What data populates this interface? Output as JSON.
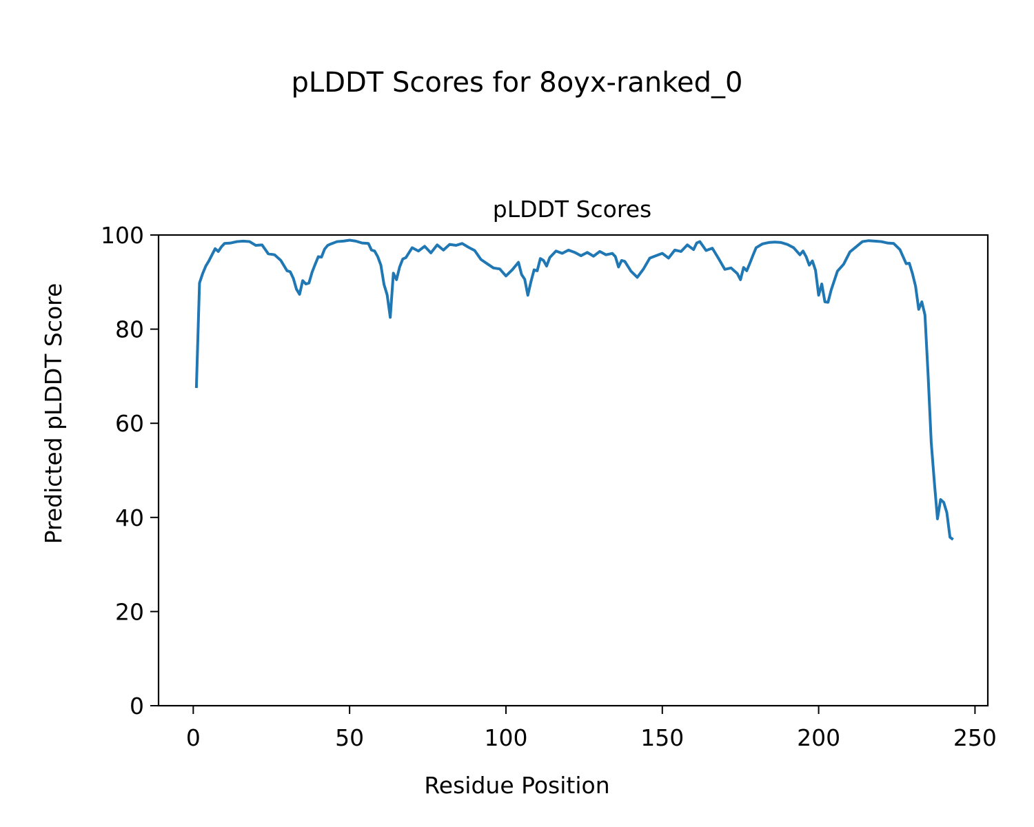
{
  "figure": {
    "suptitle": "pLDDT Scores for 8oyx-ranked_0"
  },
  "chart_data": {
    "type": "line",
    "title": "pLDDT Scores",
    "xlabel": "Residue Position",
    "ylabel": "Predicted pLDDT Score",
    "xlim": [
      -11.1,
      254.1
    ],
    "ylim": [
      0,
      100
    ],
    "xticks": [
      0,
      50,
      100,
      150,
      200,
      250
    ],
    "yticks": [
      0,
      20,
      40,
      60,
      80,
      100
    ],
    "xtick_labels": [
      "0",
      "50",
      "100",
      "150",
      "200",
      "250"
    ],
    "ytick_labels": [
      "0",
      "20",
      "40",
      "60",
      "80",
      "100"
    ],
    "grid": false,
    "line_color": "#1f77b4",
    "series": [
      {
        "x": [
          1,
          2,
          3,
          4,
          5,
          6,
          7,
          8,
          9,
          10,
          12,
          14,
          16,
          18,
          20,
          22,
          24,
          26,
          28,
          30,
          31,
          32,
          33,
          34,
          35,
          36,
          37,
          38,
          39,
          40,
          41,
          42,
          43,
          44,
          46,
          48,
          50,
          52,
          54,
          56,
          57,
          58,
          59,
          60,
          61,
          62,
          63,
          64,
          65,
          66,
          67,
          68,
          70,
          72,
          74,
          76,
          78,
          80,
          82,
          84,
          86,
          88,
          90,
          92,
          94,
          96,
          98,
          100,
          102,
          104,
          105,
          106,
          107,
          108,
          109,
          110,
          111,
          112,
          113,
          114,
          116,
          118,
          120,
          122,
          124,
          126,
          128,
          130,
          132,
          134,
          135,
          136,
          137,
          138,
          140,
          142,
          144,
          146,
          148,
          150,
          152,
          154,
          156,
          158,
          160,
          161,
          162,
          164,
          166,
          168,
          170,
          172,
          174,
          175,
          176,
          177,
          178,
          179,
          180,
          182,
          184,
          186,
          188,
          190,
          192,
          194,
          195,
          196,
          197,
          198,
          199,
          200,
          201,
          202,
          203,
          204,
          206,
          208,
          210,
          212,
          214,
          216,
          218,
          220,
          222,
          224,
          226,
          228,
          229,
          230,
          231,
          232,
          233,
          234,
          235,
          236,
          237,
          238,
          239,
          240,
          241,
          242,
          243
        ],
        "y": [
          67.5,
          89.8,
          91.8,
          93.4,
          94.5,
          95.8,
          97.1,
          96.5,
          97.5,
          98.2,
          98.3,
          98.6,
          98.7,
          98.6,
          97.8,
          97.9,
          96.0,
          95.8,
          94.6,
          92.4,
          92.2,
          90.8,
          88.5,
          87.4,
          90.3,
          89.6,
          89.8,
          92.1,
          93.8,
          95.4,
          95.3,
          97.0,
          97.8,
          98.1,
          98.6,
          98.7,
          98.9,
          98.7,
          98.3,
          98.2,
          96.8,
          96.6,
          95.4,
          93.6,
          89.5,
          87.3,
          82.5,
          91.9,
          90.5,
          93.2,
          94.9,
          95.2,
          97.3,
          96.6,
          97.6,
          96.2,
          97.9,
          96.8,
          98.0,
          97.8,
          98.2,
          97.4,
          96.7,
          94.8,
          93.9,
          93.0,
          92.8,
          91.3,
          92.6,
          94.2,
          91.6,
          90.6,
          87.2,
          90.1,
          92.6,
          92.4,
          95.0,
          94.6,
          93.4,
          95.2,
          96.6,
          96.1,
          96.8,
          96.3,
          95.6,
          96.3,
          95.5,
          96.5,
          95.8,
          96.1,
          95.4,
          93.2,
          94.6,
          94.4,
          92.3,
          91.0,
          92.8,
          95.1,
          95.6,
          96.1,
          95.1,
          96.8,
          96.5,
          97.9,
          96.9,
          98.3,
          98.6,
          96.7,
          97.2,
          95.0,
          92.7,
          93.0,
          91.8,
          90.5,
          93.1,
          92.4,
          94.0,
          95.7,
          97.3,
          98.1,
          98.4,
          98.5,
          98.4,
          98.0,
          97.3,
          95.8,
          96.6,
          95.4,
          93.6,
          94.5,
          92.5,
          87.2,
          89.6,
          85.8,
          85.7,
          88.3,
          92.3,
          93.8,
          96.4,
          97.5,
          98.6,
          98.8,
          98.7,
          98.6,
          98.3,
          98.2,
          96.9,
          93.9,
          94.0,
          91.8,
          89.1,
          84.2,
          85.8,
          83.0,
          70.3,
          56.0,
          47.5,
          39.7,
          43.8,
          43.2,
          41.0,
          35.8,
          35.3
        ]
      }
    ]
  }
}
